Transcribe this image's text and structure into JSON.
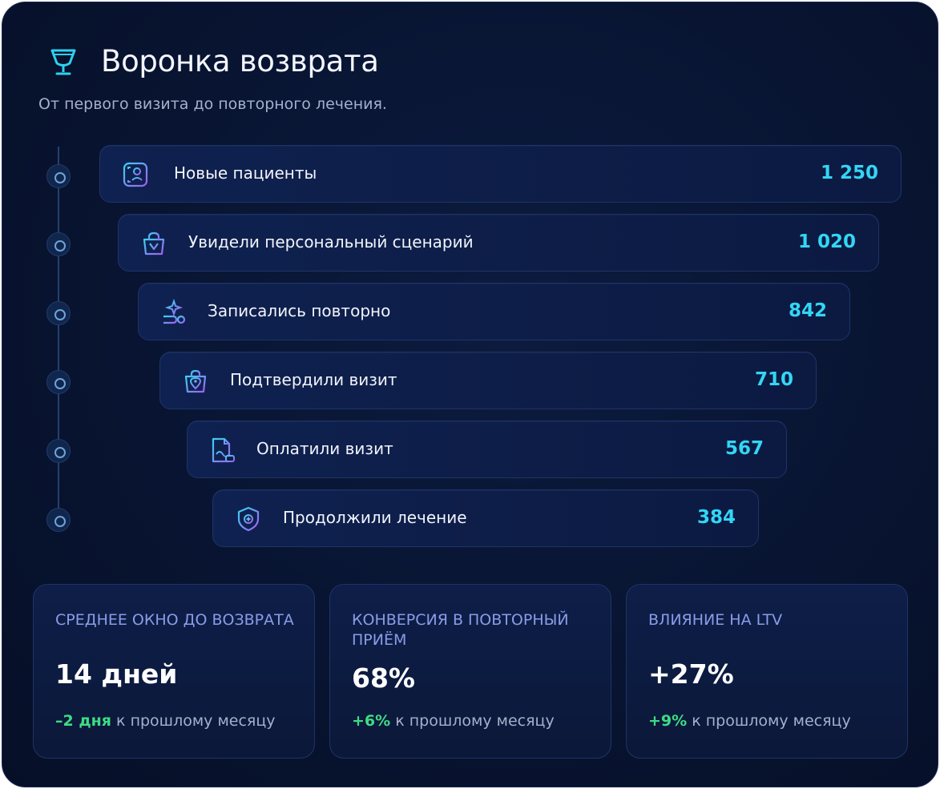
{
  "header": {
    "icon": "trophy-icon",
    "title": "Воронка возврата",
    "subtitle": "От первого визита до повторного лечения."
  },
  "funnel": {
    "stages": [
      {
        "label": "Новые пациенты",
        "value": "1 250",
        "icon": "user-card-icon"
      },
      {
        "label": "Увидели персональный сценарий",
        "value": "1 020",
        "icon": "shopping-bag-icon"
      },
      {
        "label": "Записались повторно",
        "value": "842",
        "icon": "rebook-icon"
      },
      {
        "label": "Подтвердили визит",
        "value": "710",
        "icon": "location-bag-icon"
      },
      {
        "label": "Оплатили визит",
        "value": "567",
        "icon": "payment-document-icon"
      },
      {
        "label": "Продолжили лечение",
        "value": "384",
        "icon": "medical-shield-icon"
      }
    ]
  },
  "kpis": [
    {
      "label": "Среднее окно до возврата",
      "value": "14 дней",
      "delta": "–2 дня",
      "delta_text": " к прошлому месяцу"
    },
    {
      "label": "Конверсия в повторный приём",
      "value": "68%",
      "delta": "+6%",
      "delta_text": " к прошлому месяцу"
    },
    {
      "label": "Влияние на LTV",
      "value": "+27%",
      "delta": "+9%",
      "delta_text": " к прошлому месяцу"
    }
  ],
  "colors": {
    "accent": "#33d6f5",
    "positive": "#3ddc84",
    "kpi_label": "#8a9ce8",
    "background": "#081431"
  }
}
